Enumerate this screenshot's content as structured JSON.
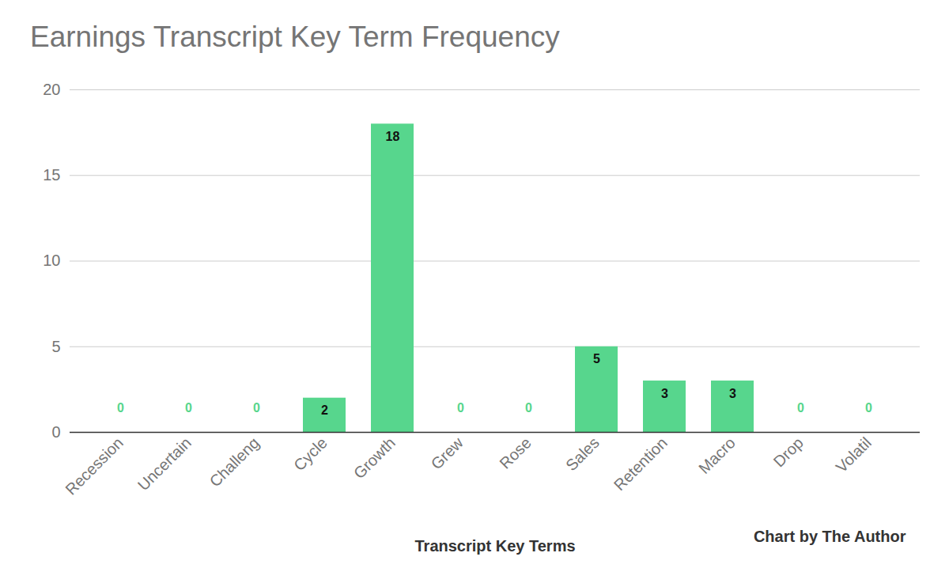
{
  "chart_data": {
    "type": "bar",
    "title": "Earnings Transcript Key Term Frequency",
    "x_label": "Transcript Key Terms",
    "caption": "Chart by The Author",
    "categories": [
      "Recession",
      "Uncertain",
      "Challeng",
      "Cycle",
      "Growth",
      "Grew",
      "Rose",
      "Sales",
      "Retention",
      "Macro",
      "Drop",
      "Volatil"
    ],
    "values": [
      0,
      0,
      0,
      2,
      18,
      0,
      0,
      5,
      3,
      3,
      0,
      0
    ],
    "color": "#57d68d",
    "ylim": [
      0,
      20
    ],
    "yticks": [
      0,
      5,
      10,
      15,
      20
    ],
    "grid": true,
    "data_labels": true
  }
}
